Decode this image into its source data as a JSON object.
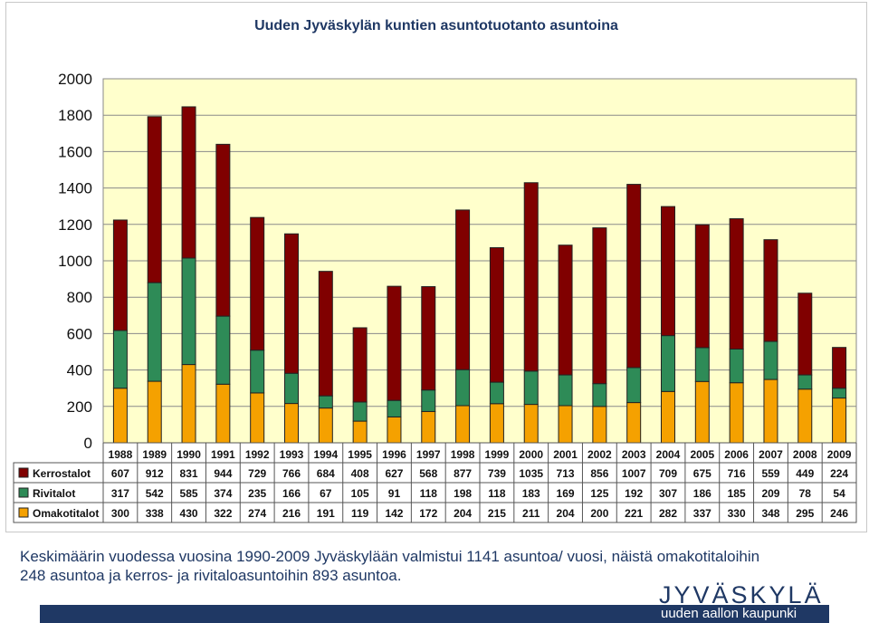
{
  "chart_data": {
    "type": "bar",
    "stacked": true,
    "title": "Uuden Jyväskylän kuntien asuntotuotanto asuntoina",
    "categories": [
      "1988",
      "1989",
      "1990",
      "1991",
      "1992",
      "1993",
      "1994",
      "1995",
      "1996",
      "1997",
      "1998",
      "1999",
      "2000",
      "2001",
      "2002",
      "2003",
      "2004",
      "2005",
      "2006",
      "2007",
      "2008",
      "2009"
    ],
    "series": [
      {
        "name": "Omakotitalot",
        "color": "#f5a100",
        "values": [
          300,
          338,
          430,
          322,
          274,
          216,
          191,
          119,
          142,
          172,
          204,
          215,
          211,
          204,
          200,
          221,
          282,
          337,
          330,
          348,
          295,
          246
        ]
      },
      {
        "name": "Rivitalot",
        "color": "#2e8b57",
        "values": [
          317,
          542,
          585,
          374,
          235,
          166,
          67,
          105,
          91,
          118,
          198,
          118,
          183,
          169,
          125,
          192,
          307,
          186,
          185,
          209,
          78,
          54
        ]
      },
      {
        "name": "Kerrostalot",
        "color": "#800000",
        "values": [
          607,
          912,
          831,
          944,
          729,
          766,
          684,
          408,
          627,
          568,
          877,
          739,
          1035,
          713,
          856,
          1007,
          709,
          675,
          716,
          559,
          449,
          224
        ]
      }
    ],
    "table_row_order": [
      "Kerrostalot",
      "Rivitalot",
      "Omakotitalot"
    ],
    "y_ticks": [
      "0",
      "200",
      "400",
      "600",
      "800",
      "1000",
      "1200",
      "1400",
      "1600",
      "1800",
      "2000"
    ],
    "ylim": [
      0,
      2000
    ],
    "grid": true,
    "legend": "data table below chart",
    "plot_background": "#ffffcc"
  },
  "caption": {
    "line1": "Keskimäärin vuodessa vuosina 1990-2009 Jyväskylään valmistui 1141 asuntoa/ vuosi, näistä omakotitaloihin",
    "line2": "248 asuntoa ja kerros- ja rivitaloasuntoihin 893 asuntoa."
  },
  "logo": {
    "name": "JYVÄSKYLÄ",
    "slogan": "uuden aallon kaupunki"
  }
}
